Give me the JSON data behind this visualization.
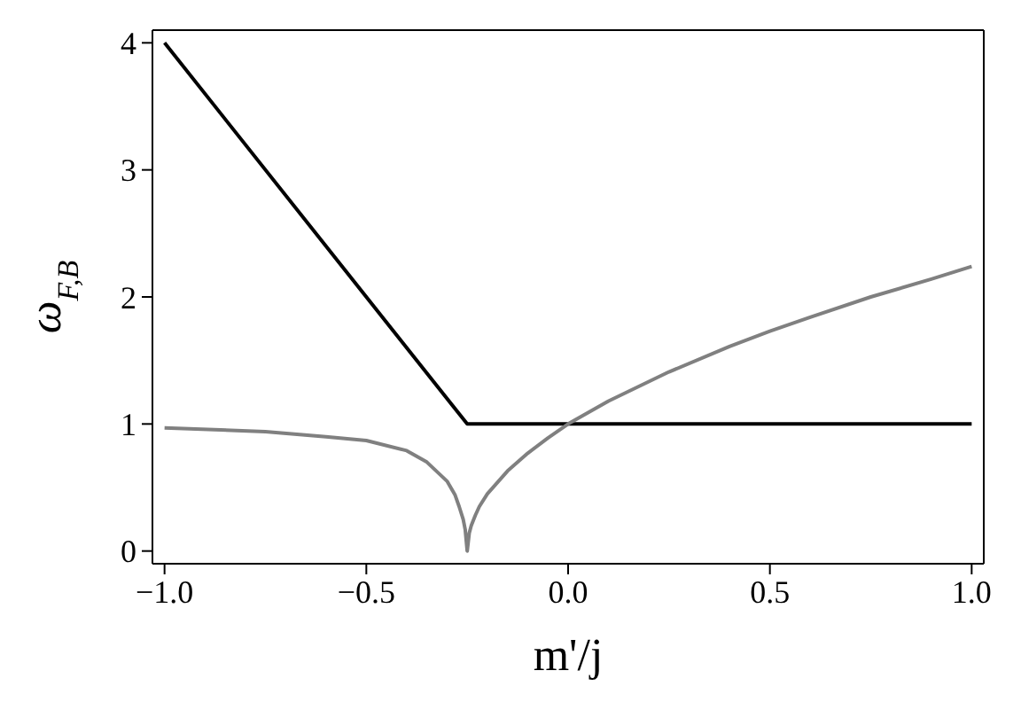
{
  "chart_data": {
    "type": "line",
    "xlabel": "m'/j",
    "ylabel": "ω$_{F,B}$",
    "xlim": [
      -1.03,
      1.03
    ],
    "ylim": [
      -0.1,
      4.1
    ],
    "xticks": [
      {
        "value": -1,
        "label": "−1.0"
      },
      {
        "value": -0.5,
        "label": "−0.5"
      },
      {
        "value": 0,
        "label": "0.0"
      },
      {
        "value": 0.5,
        "label": "0.5"
      },
      {
        "value": 1,
        "label": "1.0"
      }
    ],
    "yticks": [
      0,
      1,
      2,
      3,
      4
    ],
    "marker": "none",
    "line_style": "solid",
    "series": [
      {
        "color": "#000000",
        "x": [
          -1,
          -0.25,
          1
        ],
        "values": [
          4,
          1,
          1
        ]
      },
      {
        "color": "#808080",
        "x": [
          -1,
          -0.75,
          -0.6,
          -0.5,
          -0.4,
          -0.35,
          -0.3,
          -0.28,
          -0.27,
          -0.26,
          -0.255,
          -0.25,
          -0.245,
          -0.24,
          -0.23,
          -0.22,
          -0.2,
          -0.15,
          -0.1,
          -0.05,
          0,
          0.1,
          0.25,
          0.4,
          0.5,
          0.6,
          0.75,
          0.9,
          1
        ],
        "values": [
          0.97,
          0.94,
          0.9,
          0.87,
          0.79,
          0.7,
          0.55,
          0.44,
          0.35,
          0.25,
          0.17,
          0,
          0.14,
          0.2,
          0.28,
          0.35,
          0.45,
          0.63,
          0.77,
          0.89,
          1,
          1.18,
          1.41,
          1.61,
          1.73,
          1.84,
          2,
          2.14,
          2.24
        ]
      }
    ]
  }
}
